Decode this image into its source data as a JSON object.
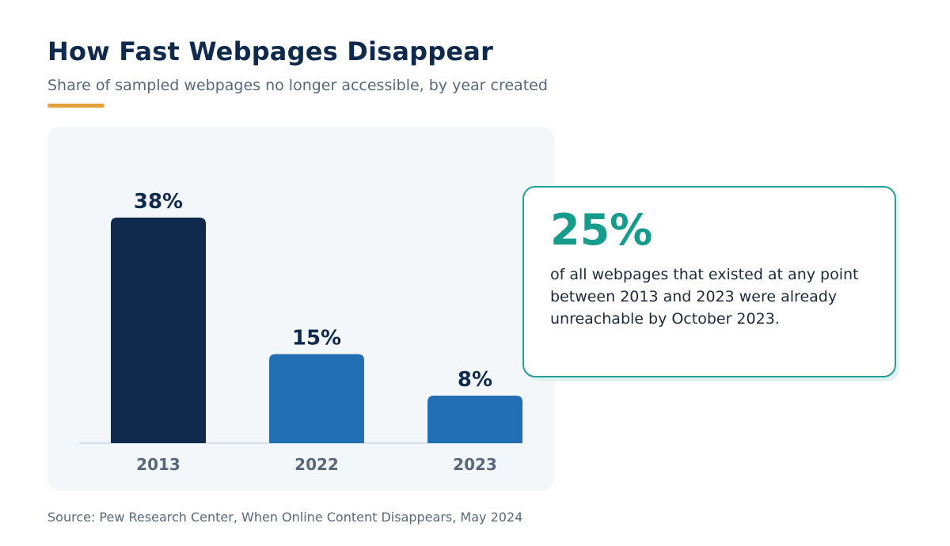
{
  "header": {
    "title": "How Fast Webpages Disappear",
    "subtitle": "Share of sampled webpages no longer accessible, by year created"
  },
  "colors": {
    "accent_rule": "#e3a23a",
    "bar_dark": "#0f2a4d",
    "bar_blue": "#2270b3",
    "teal": "#169c8d"
  },
  "chart_data": {
    "type": "bar",
    "title": "How Fast Webpages Disappear",
    "subtitle": "Share of sampled webpages no longer accessible, by year created",
    "categories": [
      "2013",
      "2022",
      "2023"
    ],
    "values": [
      38,
      15,
      8
    ],
    "value_labels": [
      "38%",
      "15%",
      "8%"
    ],
    "bar_colors": [
      "#0f2a4d",
      "#2270b3",
      "#2270b3"
    ],
    "unit": "%",
    "ylim": [
      0,
      38
    ],
    "grid": false,
    "legend": "none"
  },
  "callout": {
    "stat": "25%",
    "text": "of all webpages that existed at any point between 2013 and 2023 were already unreachable by October 2023."
  },
  "footer": {
    "source": "Source: Pew Research Center, When Online Content Disappears, May 2024"
  }
}
